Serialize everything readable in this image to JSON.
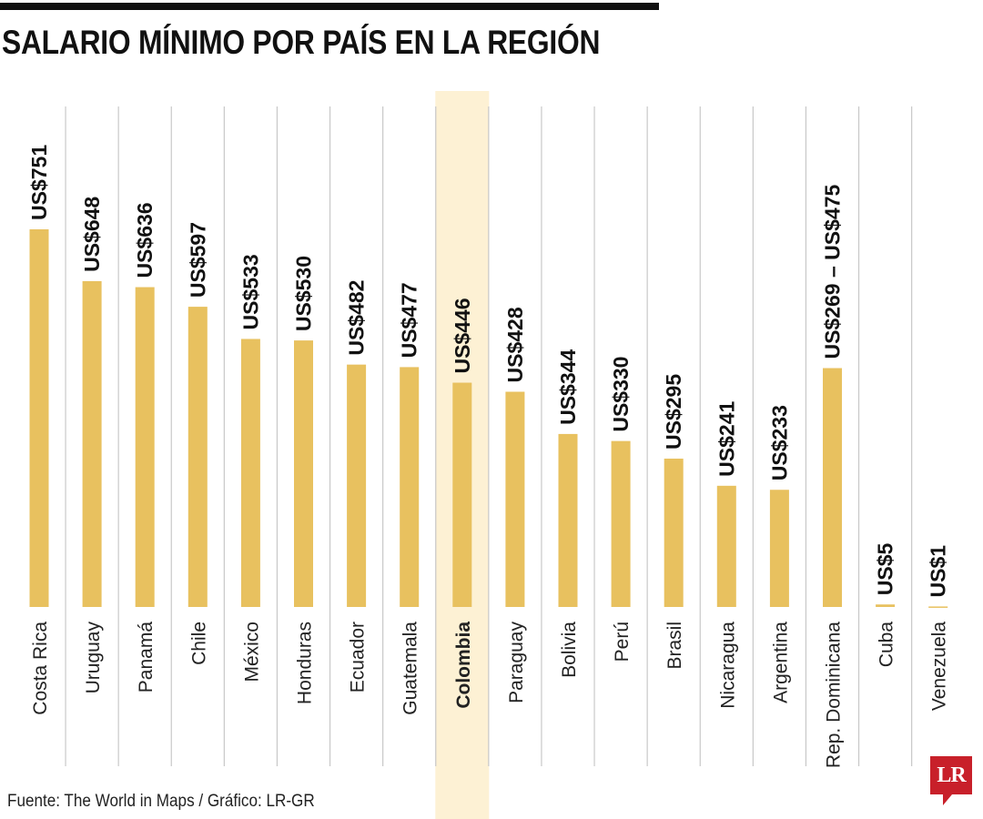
{
  "title": "SALARIO MÍNIMO POR PAÍS EN LA REGIÓN",
  "source": "Fuente: The World in Maps / Gráfico: LR-GR",
  "logo_text": "LR",
  "colors": {
    "bar": "#e8c15f",
    "highlight": "#fdf1d4",
    "divider": "#c8c8c8",
    "logo": "#c8202a"
  },
  "chart_data": {
    "type": "bar",
    "title": "SALARIO MÍNIMO POR PAÍS EN LA REGIÓN",
    "xlabel": "",
    "ylabel": "",
    "ylim": [
      0,
      751
    ],
    "grid": false,
    "highlighted_category": "Colombia",
    "categories": [
      "Costa Rica",
      "Uruguay",
      "Panamá",
      "Chile",
      "México",
      "Honduras",
      "Ecuador",
      "Guatemala",
      "Colombia",
      "Paraguay",
      "Bolivia",
      "Perú",
      "Brasil",
      "Nicaragua",
      "Argentina",
      "Rep. Dominicana",
      "Cuba",
      "Venezuela"
    ],
    "values": [
      751,
      648,
      636,
      597,
      533,
      530,
      482,
      477,
      446,
      428,
      344,
      330,
      295,
      241,
      233,
      475,
      5,
      1
    ],
    "data_labels": [
      "US$751",
      "US$648",
      "US$636",
      "US$597",
      "US$533",
      "US$530",
      "US$482",
      "US$477",
      "US$446",
      "US$428",
      "US$344",
      "US$330",
      "US$295",
      "US$241",
      "US$233",
      "US$269 – US$475",
      "US$5",
      "US$1"
    ]
  }
}
